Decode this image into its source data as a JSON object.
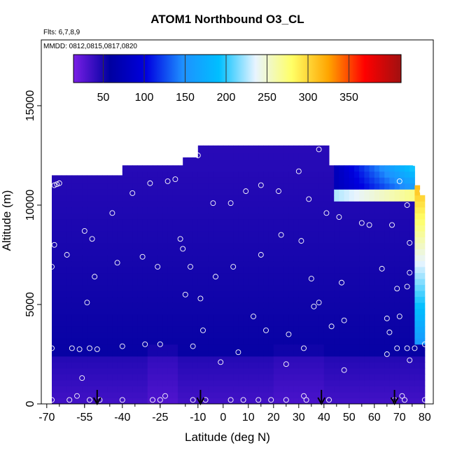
{
  "chart_data": {
    "type": "heatmap",
    "title": "ATOM1 Northbound O3_CL",
    "notes": [
      "Flts: 6,7,8,9",
      "MMDD: 0812,0815,0817,0820"
    ],
    "xlabel": "Latitude (deg N)",
    "ylabel": "Altitude (m)",
    "xlim": [
      -70,
      85
    ],
    "ylim": [
      0,
      18000
    ],
    "x_ticks": [
      -70,
      -55,
      -40,
      -25,
      -10,
      0,
      10,
      20,
      30,
      40,
      50,
      60,
      70,
      80
    ],
    "x_tick_labels": [
      "-70",
      "-55",
      "-40",
      "-25",
      "-10",
      "0",
      "10",
      "20",
      "30",
      "40",
      "50",
      "60",
      "70",
      "80"
    ],
    "y_ticks": [
      0,
      5000,
      10000,
      15000
    ],
    "y_tick_labels": [
      "0",
      "5000",
      "10000",
      "15000"
    ],
    "colorbar": {
      "min": 0,
      "max": 400,
      "ticks": [
        50,
        100,
        150,
        200,
        250,
        300,
        350
      ],
      "tick_labels": [
        "50",
        "100",
        "150",
        "200",
        "250",
        "300",
        "350"
      ],
      "colors": [
        "#7a1fe6",
        "#0000a0",
        "#0000e0",
        "#1e90ff",
        "#00bfff",
        "#e8f4ff",
        "#ffff66",
        "#ffa500",
        "#ff0000",
        "#a01010"
      ]
    },
    "ceiling_profile": [
      {
        "x0": -68,
        "x1": -40,
        "top": 11500
      },
      {
        "x0": -40,
        "x1": -15,
        "top": 12000
      },
      {
        "x0": -15,
        "x1": -10,
        "top": 12400
      },
      {
        "x0": -10,
        "x1": 42,
        "top": 13000
      },
      {
        "x0": 42,
        "x1": 76,
        "top": 12000
      },
      {
        "x0": 76,
        "x1": 78,
        "top": 11000
      },
      {
        "x0": 78,
        "x1": 80,
        "top": 10500
      }
    ],
    "sample_points": [
      [
        -68,
        200
      ],
      [
        -68,
        2800
      ],
      [
        -68,
        6900
      ],
      [
        -67,
        8000
      ],
      [
        -67,
        11000
      ],
      [
        -66,
        11050
      ],
      [
        -65,
        11100
      ],
      [
        -62,
        7500
      ],
      [
        -61,
        200
      ],
      [
        -60,
        2800
      ],
      [
        -58,
        400
      ],
      [
        -57,
        2750
      ],
      [
        -56,
        1300
      ],
      [
        -55,
        8700
      ],
      [
        -54,
        5100
      ],
      [
        -53,
        200
      ],
      [
        -53,
        2800
      ],
      [
        -52,
        8300
      ],
      [
        -51,
        6400
      ],
      [
        -50,
        2750
      ],
      [
        -49,
        200
      ],
      [
        -44,
        9600
      ],
      [
        -42,
        7100
      ],
      [
        -40,
        2900
      ],
      [
        -40,
        200
      ],
      [
        -36,
        10600
      ],
      [
        -32,
        7400
      ],
      [
        -31,
        3000
      ],
      [
        -29,
        11100
      ],
      [
        -28,
        200
      ],
      [
        -26,
        6900
      ],
      [
        -25,
        200
      ],
      [
        -25,
        3000
      ],
      [
        -23,
        400
      ],
      [
        -22,
        11200
      ],
      [
        -19,
        11300
      ],
      [
        -17,
        8300
      ],
      [
        -16,
        7800
      ],
      [
        -15,
        5500
      ],
      [
        -13,
        6900
      ],
      [
        -12,
        2900
      ],
      [
        -12,
        200
      ],
      [
        -10,
        12500
      ],
      [
        -9,
        5300
      ],
      [
        -8,
        3700
      ],
      [
        -7,
        200
      ],
      [
        -4,
        10100
      ],
      [
        -3,
        6400
      ],
      [
        -1,
        2100
      ],
      [
        3,
        10100
      ],
      [
        3,
        200
      ],
      [
        4,
        6900
      ],
      [
        6,
        2600
      ],
      [
        8,
        200
      ],
      [
        9,
        10700
      ],
      [
        12,
        4400
      ],
      [
        14,
        200
      ],
      [
        15,
        11000
      ],
      [
        15,
        7500
      ],
      [
        17,
        3700
      ],
      [
        19,
        200
      ],
      [
        22,
        10700
      ],
      [
        23,
        8500
      ],
      [
        25,
        2000
      ],
      [
        25,
        200
      ],
      [
        26,
        3500
      ],
      [
        30,
        11700
      ],
      [
        31,
        8200
      ],
      [
        32,
        2800
      ],
      [
        32,
        400
      ],
      [
        33,
        200
      ],
      [
        34,
        10300
      ],
      [
        35,
        6300
      ],
      [
        36,
        4900
      ],
      [
        38,
        12800
      ],
      [
        38,
        5100
      ],
      [
        41,
        9600
      ],
      [
        42,
        200
      ],
      [
        43,
        3900
      ],
      [
        46,
        9400
      ],
      [
        47,
        6100
      ],
      [
        48,
        1700
      ],
      [
        48,
        4200
      ],
      [
        55,
        9100
      ],
      [
        58,
        9000
      ],
      [
        63,
        6800
      ],
      [
        65,
        4300
      ],
      [
        65,
        2500
      ],
      [
        66,
        3600
      ],
      [
        67,
        9000
      ],
      [
        68,
        200
      ],
      [
        69,
        5800
      ],
      [
        69,
        2800
      ],
      [
        70,
        11200
      ],
      [
        70,
        4400
      ],
      [
        71,
        400
      ],
      [
        72,
        200
      ],
      [
        73,
        10000
      ],
      [
        73,
        2800
      ],
      [
        73,
        5900
      ],
      [
        74,
        6600
      ],
      [
        74,
        8100
      ],
      [
        74,
        2200
      ],
      [
        76,
        2800
      ],
      [
        76,
        12100
      ],
      [
        79,
        10700
      ],
      [
        80,
        3000
      ],
      [
        80,
        200
      ]
    ],
    "flight_markers_x": [
      -50,
      -9,
      39,
      68
    ],
    "legend": "none",
    "grid": false
  }
}
